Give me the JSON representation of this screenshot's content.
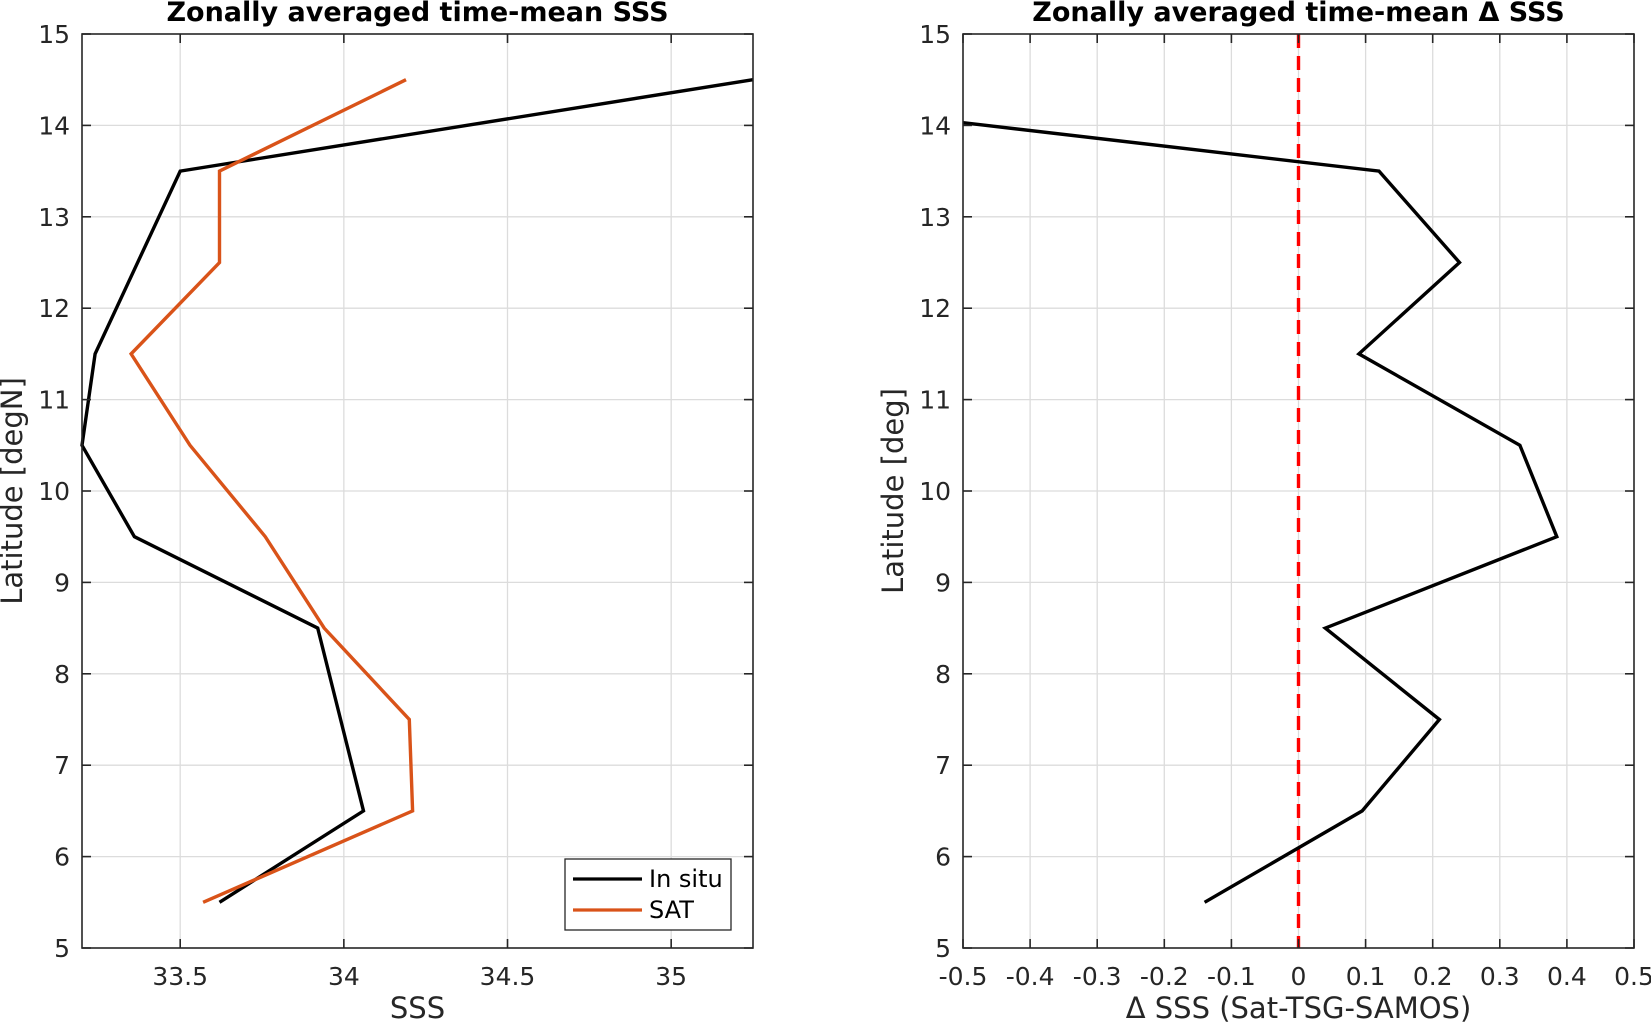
{
  "chart_data": [
    {
      "type": "line",
      "title": "Zonally averaged time-mean SSS",
      "xlabel": "SSS",
      "ylabel": "Latitude [degN]",
      "xlim": [
        33.2,
        35.25
      ],
      "ylim": [
        5,
        15
      ],
      "xticks": [
        33.5,
        34,
        34.5,
        35
      ],
      "xtick_labels": [
        "33.5",
        "34",
        "34.5",
        "35"
      ],
      "yticks": [
        5,
        6,
        7,
        8,
        9,
        10,
        11,
        12,
        13,
        14,
        15
      ],
      "ytick_labels": [
        "5",
        "6",
        "7",
        "8",
        "9",
        "10",
        "11",
        "12",
        "13",
        "14",
        "15"
      ],
      "grid": true,
      "legend_position": "bottom-right",
      "series": [
        {
          "name": "In situ",
          "color": "#000000",
          "points": [
            [
              33.62,
              5.5
            ],
            [
              34.06,
              6.5
            ],
            [
              33.99,
              7.5
            ],
            [
              33.92,
              8.5
            ],
            [
              33.36,
              9.5
            ],
            [
              33.2,
              10.5
            ],
            [
              33.24,
              11.5
            ],
            [
              33.5,
              13.5
            ],
            [
              35.25,
              14.5
            ]
          ]
        },
        {
          "name": "SAT",
          "color": "#D95319",
          "points": [
            [
              33.57,
              5.5
            ],
            [
              34.21,
              6.5
            ],
            [
              34.2,
              7.5
            ],
            [
              33.94,
              8.5
            ],
            [
              33.76,
              9.5
            ],
            [
              33.53,
              10.5
            ],
            [
              33.35,
              11.5
            ],
            [
              33.62,
              12.5
            ],
            [
              33.62,
              13.5
            ],
            [
              34.19,
              14.5
            ]
          ]
        }
      ]
    },
    {
      "type": "line",
      "title": "Zonally averaged time-mean Δ SSS",
      "xlabel": "Δ SSS (Sat-TSG-SAMOS)",
      "ylabel": "Latitude [deg]",
      "xlim": [
        -0.5,
        0.5
      ],
      "ylim": [
        5,
        15
      ],
      "xticks": [
        -0.5,
        -0.4,
        -0.3,
        -0.2,
        -0.1,
        0,
        0.1,
        0.2,
        0.3,
        0.4,
        0.5
      ],
      "xtick_labels": [
        "-0.5",
        "-0.4",
        "-0.3",
        "-0.2",
        "-0.1",
        "0",
        "0.1",
        "0.2",
        "0.3",
        "0.4",
        "0.5"
      ],
      "yticks": [
        5,
        6,
        7,
        8,
        9,
        10,
        11,
        12,
        13,
        14,
        15
      ],
      "ytick_labels": [
        "5",
        "6",
        "7",
        "8",
        "9",
        "10",
        "11",
        "12",
        "13",
        "14",
        "15"
      ],
      "grid": true,
      "reference_line": {
        "x": 0,
        "color": "#FF0000",
        "style": "dashed"
      },
      "series": [
        {
          "color": "#000000",
          "points": [
            [
              -0.14,
              5.5
            ],
            [
              0.095,
              6.5
            ],
            [
              0.21,
              7.5
            ],
            [
              0.04,
              8.5
            ],
            [
              0.385,
              9.5
            ],
            [
              0.33,
              10.5
            ],
            [
              0.09,
              11.5
            ],
            [
              0.24,
              12.5
            ],
            [
              0.12,
              13.5
            ],
            [
              -0.5,
              14.03
            ]
          ]
        }
      ]
    }
  ]
}
